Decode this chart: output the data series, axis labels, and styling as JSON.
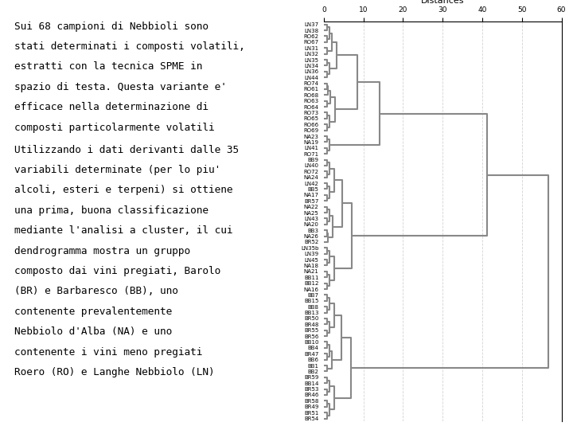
{
  "title": "Distances",
  "xlim": [
    0,
    60
  ],
  "xticks": [
    0,
    10,
    20,
    30,
    40,
    50,
    60
  ],
  "background": "#ffffff",
  "labels": [
    "RO69",
    "RO66",
    "RO65",
    "RO73",
    "RO64",
    "RO63",
    "RO61",
    "RO74",
    "RO68",
    "LN44",
    "LN36",
    "LN34",
    "LN35",
    "RO67",
    "RO62",
    "LN38",
    "LN37",
    "LN32",
    "LN31",
    "RO71",
    "LN41",
    "NA19",
    "NA23",
    "NA16",
    "BB12",
    "BB11",
    "NA21",
    "NA18",
    "LN45",
    "LN39",
    "LN35b",
    "BR57",
    "NA17",
    "BB5",
    "LN42",
    "NA24",
    "RO72",
    "LN40",
    "BB9",
    "NA20",
    "LN43",
    "NA25",
    "NA22",
    "NA26",
    "BB3",
    "BR52",
    "BR54",
    "BR51",
    "BR49",
    "BR58",
    "BR46",
    "BR53",
    "BB14",
    "BR59",
    "BR56",
    "BR55",
    "BR48",
    "BR50",
    "BB13",
    "BB8",
    "BB15",
    "BB7",
    "BB6",
    "BR47",
    "BB4",
    "BB10",
    "BB2",
    "BB1"
  ],
  "text_para1": [
    "Sui 68 campioni di Nebbioli sono",
    "stati determinati i composti volatili,",
    "estratti con la tecnica SPME in",
    "spazio di testa. Questa variante e'",
    "efficace nella determinazione di",
    "composti particolarmente volatili"
  ],
  "text_para2": [
    "Utilizzando i dati derivanti dalle 35",
    "variabili determinate (per lo piu'",
    "alcoli, esteri e terpeni) si ottiene",
    "una prima, buona classificazione",
    "mediante l'analisi a cluster, il cui",
    "dendrogramma mostra un gruppo",
    "composto dai vini pregiati, Barolo",
    "(BR) e Barbaresco (BB), uno",
    "contenente prevalentemente",
    "Nebbiolo d'Alba (NA) e uno",
    "contenente i vini meno pregiati",
    "Roero (RO) e Langhe Nebbiolo (LN)"
  ],
  "line_color": "gray",
  "dashed_color": "lightgray",
  "text_fontsize": 9.2,
  "label_fontsize": 5.0,
  "title_fontsize": 8
}
